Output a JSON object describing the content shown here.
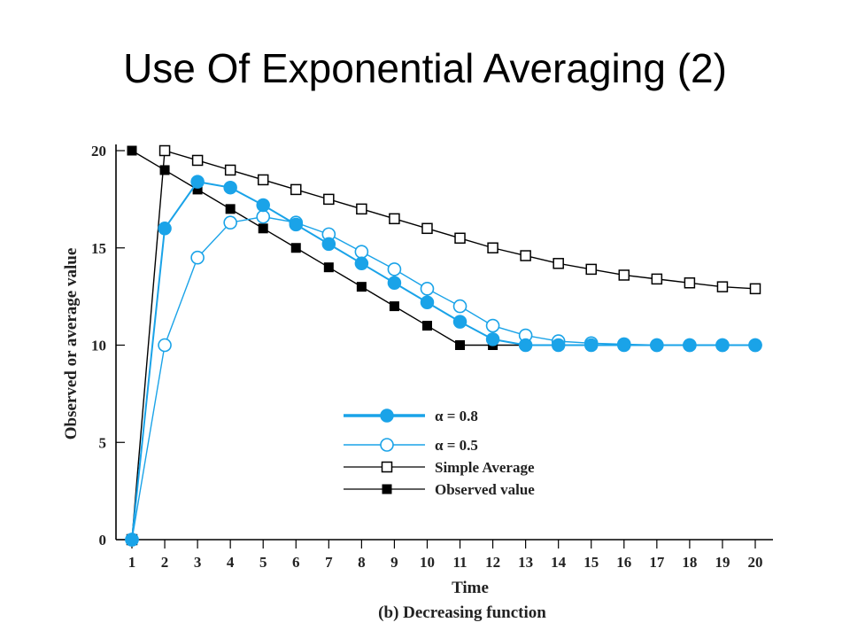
{
  "slide": {
    "title": "Use Of Exponential Averaging (2)"
  },
  "chart_data": {
    "type": "line",
    "xlabel": "Time",
    "ylabel": "Observed or average value",
    "caption": "(b) Decreasing function",
    "x": [
      1,
      2,
      3,
      4,
      5,
      6,
      7,
      8,
      9,
      10,
      11,
      12,
      13,
      14,
      15,
      16,
      17,
      18,
      19,
      20
    ],
    "yticks": [
      0,
      5,
      10,
      15,
      20
    ],
    "xlim": [
      1,
      20
    ],
    "ylim": [
      0,
      20
    ],
    "grid": false,
    "legend_position": "center-right",
    "series": [
      {
        "name": "α = 0.8",
        "color": "#1aa3e8",
        "marker": "filled-circle",
        "values": [
          0,
          16,
          18.4,
          18.1,
          17.2,
          16.2,
          15.2,
          14.2,
          13.2,
          12.2,
          11.2,
          10.3,
          10.0,
          10.0,
          10.0,
          10.0,
          10.0,
          10.0,
          10.0,
          10.0
        ]
      },
      {
        "name": "α = 0.5",
        "color": "#1aa3e8",
        "marker": "open-circle",
        "values": [
          0,
          10,
          14.5,
          16.3,
          16.6,
          16.3,
          15.7,
          14.8,
          13.9,
          12.9,
          12.0,
          11.0,
          10.5,
          10.2,
          10.1,
          10.05,
          10.0,
          10.0,
          10.0,
          10.0
        ]
      },
      {
        "name": "Simple Average",
        "color": "#000000",
        "marker": "open-square",
        "values": [
          0,
          20,
          19.5,
          19.0,
          18.5,
          18.0,
          17.5,
          17.0,
          16.5,
          16.0,
          15.5,
          15.0,
          14.6,
          14.2,
          13.9,
          13.6,
          13.4,
          13.2,
          13.0,
          12.9
        ]
      },
      {
        "name": "Observed value",
        "color": "#000000",
        "marker": "filled-square",
        "values": [
          20,
          19,
          18,
          17,
          16,
          15,
          14,
          13,
          12,
          11,
          10,
          10,
          10,
          10,
          10,
          10,
          10,
          10,
          10,
          10
        ]
      }
    ]
  }
}
